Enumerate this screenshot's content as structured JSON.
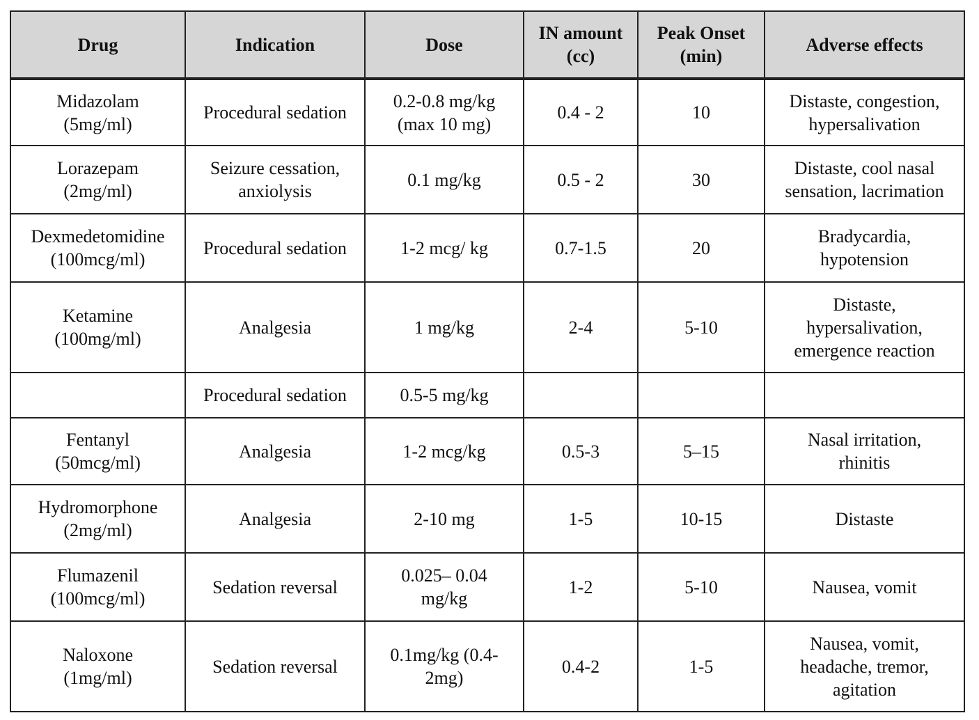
{
  "table": {
    "headers": [
      [
        "Drug"
      ],
      [
        "Indication"
      ],
      [
        "Dose"
      ],
      [
        "IN amount",
        "(cc)"
      ],
      [
        "Peak Onset",
        "(min)"
      ],
      [
        "Adverse effects"
      ]
    ],
    "rows": [
      [
        [
          "Midazolam",
          "(5mg/ml)"
        ],
        [
          "Procedural sedation"
        ],
        [
          "0.2-0.8 mg/kg",
          "(max 10 mg)"
        ],
        [
          "0.4 - 2"
        ],
        [
          "10"
        ],
        [
          "Distaste, congestion,",
          "hypersalivation"
        ]
      ],
      [
        [
          "Lorazepam",
          "(2mg/ml)"
        ],
        [
          "Seizure cessation,",
          "anxiolysis"
        ],
        [
          "0.1 mg/kg"
        ],
        [
          "0.5 - 2"
        ],
        [
          "30"
        ],
        [
          "Distaste, cool nasal",
          "sensation, lacrimation"
        ]
      ],
      [
        [
          "Dexmedetomidine",
          "(100mcg/ml)"
        ],
        [
          "Procedural sedation"
        ],
        [
          "1-2 mcg/ kg"
        ],
        [
          "0.7-1.5"
        ],
        [
          "20"
        ],
        [
          "Bradycardia,",
          "hypotension"
        ]
      ],
      [
        [
          "Ketamine",
          "(100mg/ml)"
        ],
        [
          "Analgesia"
        ],
        [
          "1 mg/kg"
        ],
        [
          "2-4"
        ],
        [
          "5-10"
        ],
        [
          "Distaste,",
          "hypersalivation,",
          "emergence reaction"
        ]
      ],
      [
        [
          ""
        ],
        [
          "Procedural sedation"
        ],
        [
          "0.5-5 mg/kg"
        ],
        [
          ""
        ],
        [
          ""
        ],
        [
          ""
        ]
      ],
      [
        [
          "Fentanyl",
          "(50mcg/ml)"
        ],
        [
          "Analgesia"
        ],
        [
          "1-2 mcg/kg"
        ],
        [
          "0.5-3"
        ],
        [
          "5–15"
        ],
        [
          "Nasal irritation,",
          "rhinitis"
        ]
      ],
      [
        [
          "Hydromorphone",
          "(2mg/ml)"
        ],
        [
          "Analgesia"
        ],
        [
          "2-10 mg"
        ],
        [
          "1-5"
        ],
        [
          "10-15"
        ],
        [
          "Distaste"
        ]
      ],
      [
        [
          "Flumazenil",
          "(100mcg/ml)"
        ],
        [
          "Sedation reversal"
        ],
        [
          "0.025– 0.04",
          "mg/kg"
        ],
        [
          "1-2"
        ],
        [
          "5-10"
        ],
        [
          "Nausea, vomit"
        ]
      ],
      [
        [
          "Naloxone",
          "(1mg/ml)"
        ],
        [
          "Sedation reversal"
        ],
        [
          "0.1mg/kg (0.4-",
          "2mg)"
        ],
        [
          "0.4-2"
        ],
        [
          "1-5"
        ],
        [
          "Nausea, vomit,",
          "headache, tremor,",
          "agitation"
        ]
      ]
    ]
  }
}
